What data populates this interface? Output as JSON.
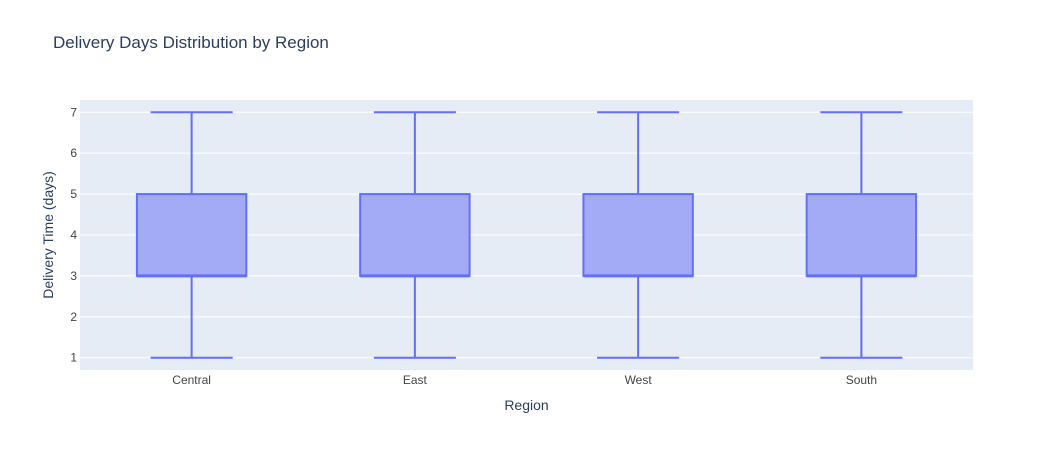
{
  "chart_data": {
    "type": "box",
    "title": "Delivery Days Distribution by Region",
    "xlabel": "Region",
    "ylabel": "Delivery Time (days)",
    "ylim": [
      0.7,
      7.3
    ],
    "yticks": [
      1,
      2,
      3,
      4,
      5,
      6,
      7
    ],
    "grid": true,
    "legend": "none",
    "categories": [
      "Central",
      "East",
      "West",
      "South"
    ],
    "boxes": [
      {
        "category": "Central",
        "min": 1,
        "q1": 3,
        "median": 3,
        "q3": 5,
        "max": 7
      },
      {
        "category": "East",
        "min": 1,
        "q1": 3,
        "median": 3,
        "q3": 5,
        "max": 7
      },
      {
        "category": "West",
        "min": 1,
        "q1": 3,
        "median": 3,
        "q3": 5,
        "max": 7
      },
      {
        "category": "South",
        "min": 1,
        "q1": 3,
        "median": 3,
        "q3": 5,
        "max": 7
      }
    ],
    "colors": {
      "plot_bg": "#e5ecf6",
      "grid": "#ffffff",
      "box_fill": "#a3abf6",
      "box_line": "#636efa",
      "text": "#2a3f5f",
      "tick_text": "#444444"
    }
  }
}
